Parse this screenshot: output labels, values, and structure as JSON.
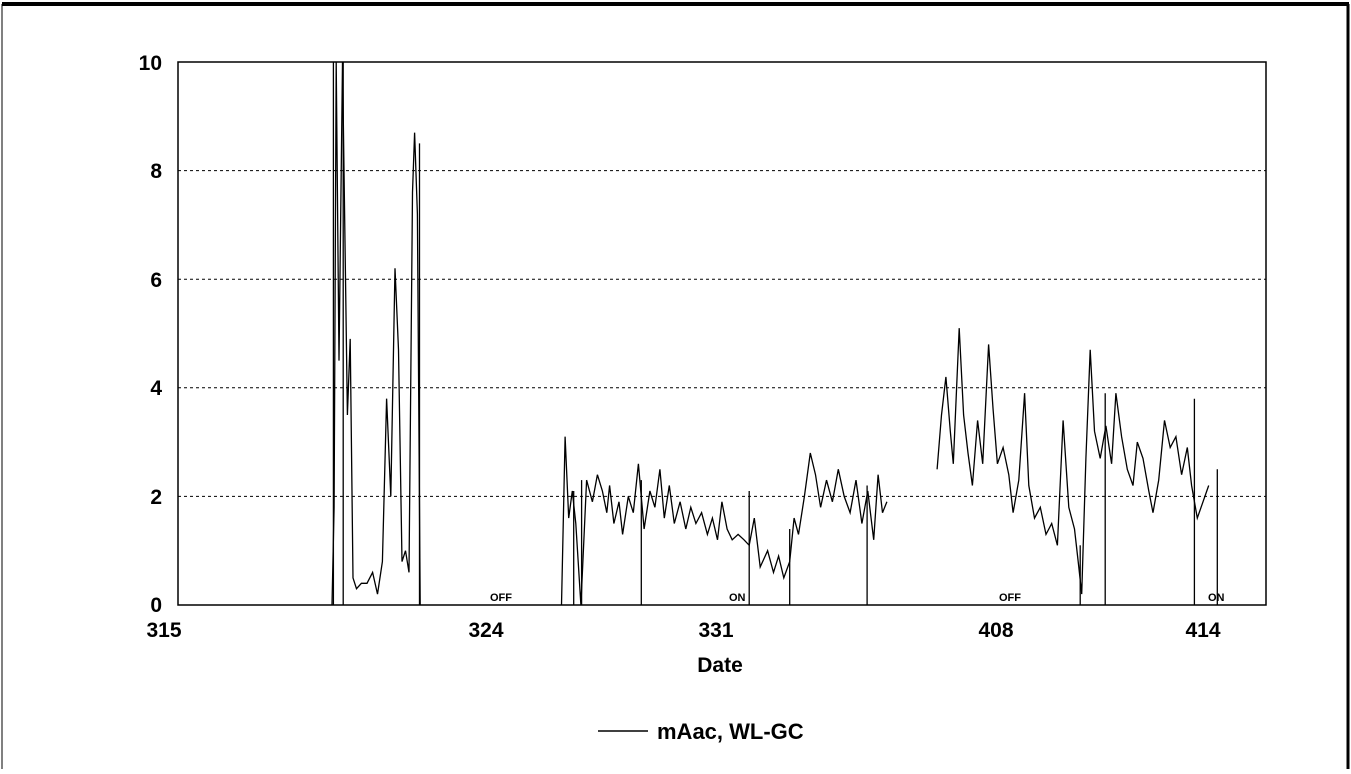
{
  "chart_data": {
    "type": "line",
    "title": "",
    "xlabel": "Date",
    "ylabel": "",
    "ylim": [
      0,
      10
    ],
    "yticks": [
      "0",
      "2",
      "4",
      "6",
      "8",
      "10"
    ],
    "xticks": [
      "315",
      "324",
      "331",
      "408",
      "414"
    ],
    "grid": "horizontal dashed",
    "legend_position": "bottom-center",
    "annotations": [
      "OFF",
      "ON",
      "OFF",
      "ON"
    ],
    "series": [
      {
        "name": "mAac, WL-GC",
        "color": "#000000",
        "segments": [
          [
            [
              2.2,
              0
            ],
            [
              2.23,
              1.8
            ],
            [
              2.26,
              10
            ],
            [
              2.3,
              4.5
            ],
            [
              2.35,
              10
            ],
            [
              2.42,
              3.5
            ],
            [
              2.46,
              4.9
            ],
            [
              2.5,
              0.5
            ],
            [
              2.55,
              0.3
            ],
            [
              2.62,
              0.4
            ],
            [
              2.7,
              0.4
            ],
            [
              2.78,
              0.6
            ],
            [
              2.85,
              0.2
            ],
            [
              2.92,
              0.8
            ],
            [
              2.98,
              3.8
            ],
            [
              3.04,
              2
            ],
            [
              3.1,
              6.2
            ],
            [
              3.15,
              4.7
            ],
            [
              3.2,
              0.8
            ],
            [
              3.25,
              1
            ],
            [
              3.3,
              0.6
            ],
            [
              3.35,
              7.6
            ],
            [
              3.38,
              8.7
            ],
            [
              3.42,
              7.2
            ],
            [
              3.46,
              0
            ]
          ],
          [
            [
              5.45,
              0
            ],
            [
              5.5,
              3.1
            ],
            [
              5.55,
              1.6
            ],
            [
              5.6,
              2.1
            ],
            [
              5.65,
              1.5
            ],
            [
              5.72,
              0
            ],
            [
              5.8,
              2.3
            ],
            [
              5.88,
              1.9
            ],
            [
              5.95,
              2.4
            ],
            [
              6.02,
              2.1
            ],
            [
              6.08,
              1.7
            ],
            [
              6.12,
              2.2
            ],
            [
              6.18,
              1.5
            ],
            [
              6.25,
              1.9
            ],
            [
              6.3,
              1.3
            ],
            [
              6.38,
              2
            ],
            [
              6.45,
              1.7
            ],
            [
              6.52,
              2.6
            ],
            [
              6.6,
              1.4
            ],
            [
              6.68,
              2.1
            ],
            [
              6.75,
              1.8
            ],
            [
              6.82,
              2.5
            ],
            [
              6.88,
              1.6
            ],
            [
              6.95,
              2.2
            ],
            [
              7.02,
              1.5
            ],
            [
              7.1,
              1.9
            ],
            [
              7.18,
              1.4
            ],
            [
              7.25,
              1.8
            ],
            [
              7.32,
              1.5
            ],
            [
              7.4,
              1.7
            ],
            [
              7.48,
              1.3
            ],
            [
              7.55,
              1.6
            ],
            [
              7.62,
              1.2
            ],
            [
              7.68,
              1.9
            ],
            [
              7.75,
              1.4
            ],
            [
              7.82,
              1.2
            ],
            [
              7.9,
              1.3
            ],
            [
              7.98,
              1.2
            ],
            [
              8.05,
              1.1
            ],
            [
              8.12,
              1.6
            ],
            [
              8.2,
              0.7
            ],
            [
              8.3,
              1
            ],
            [
              8.38,
              0.6
            ],
            [
              8.45,
              0.9
            ],
            [
              8.52,
              0.5
            ],
            [
              8.6,
              0.8
            ],
            [
              8.66,
              1.6
            ],
            [
              8.72,
              1.3
            ],
            [
              8.8,
              2
            ],
            [
              8.88,
              2.8
            ],
            [
              8.95,
              2.4
            ],
            [
              9.02,
              1.8
            ],
            [
              9.1,
              2.3
            ],
            [
              9.18,
              1.9
            ],
            [
              9.26,
              2.5
            ],
            [
              9.34,
              2
            ],
            [
              9.42,
              1.7
            ],
            [
              9.5,
              2.3
            ],
            [
              9.58,
              1.5
            ],
            [
              9.66,
              2.1
            ],
            [
              9.74,
              1.2
            ],
            [
              9.8,
              2.4
            ],
            [
              9.86,
              1.7
            ],
            [
              9.92,
              1.9
            ]
          ],
          [
            [
              10.6,
              2.5
            ],
            [
              10.66,
              3.5
            ],
            [
              10.72,
              4.2
            ],
            [
              10.78,
              3.2
            ],
            [
              10.82,
              2.6
            ],
            [
              10.9,
              5.1
            ],
            [
              10.96,
              3.5
            ],
            [
              11.02,
              2.8
            ],
            [
              11.08,
              2.2
            ],
            [
              11.15,
              3.4
            ],
            [
              11.22,
              2.6
            ],
            [
              11.3,
              4.8
            ],
            [
              11.36,
              3.6
            ],
            [
              11.42,
              2.6
            ],
            [
              11.5,
              2.9
            ],
            [
              11.58,
              2.4
            ],
            [
              11.64,
              1.7
            ],
            [
              11.72,
              2.3
            ],
            [
              11.8,
              3.9
            ],
            [
              11.86,
              2.2
            ],
            [
              11.94,
              1.6
            ],
            [
              12.02,
              1.8
            ],
            [
              12.1,
              1.3
            ],
            [
              12.18,
              1.5
            ],
            [
              12.26,
              1.1
            ],
            [
              12.34,
              3.4
            ],
            [
              12.42,
              1.8
            ],
            [
              12.5,
              1.4
            ],
            [
              12.56,
              0.7
            ],
            [
              12.6,
              0.2
            ],
            [
              12.66,
              2.7
            ],
            [
              12.72,
              4.7
            ],
            [
              12.78,
              3.2
            ],
            [
              12.86,
              2.7
            ],
            [
              12.94,
              3.3
            ],
            [
              13.02,
              2.6
            ],
            [
              13.08,
              3.9
            ],
            [
              13.16,
              3.1
            ],
            [
              13.24,
              2.5
            ],
            [
              13.32,
              2.2
            ],
            [
              13.38,
              3
            ],
            [
              13.46,
              2.7
            ],
            [
              13.54,
              2.1
            ],
            [
              13.6,
              1.7
            ],
            [
              13.68,
              2.3
            ],
            [
              13.76,
              3.4
            ],
            [
              13.84,
              2.9
            ],
            [
              13.92,
              3.1
            ],
            [
              14,
              2.4
            ],
            [
              14.08,
              2.9
            ],
            [
              14.14,
              2.2
            ],
            [
              14.22,
              1.6
            ],
            [
              14.3,
              1.9
            ],
            [
              14.38,
              2.2
            ]
          ]
        ],
        "drops": [
          [
            2.22,
            10
          ],
          [
            2.36,
            10
          ],
          [
            3.45,
            8.5
          ],
          [
            5.62,
            2.1
          ],
          [
            5.73,
            2.3
          ],
          [
            6.56,
            2.3
          ],
          [
            8.05,
            2.1
          ],
          [
            8.6,
            1.4
          ],
          [
            9.65,
            2.2
          ],
          [
            12.58,
            1.1
          ],
          [
            12.93,
            3.9
          ],
          [
            14.18,
            3.8
          ],
          [
            14.5,
            2.5
          ]
        ]
      }
    ]
  }
}
